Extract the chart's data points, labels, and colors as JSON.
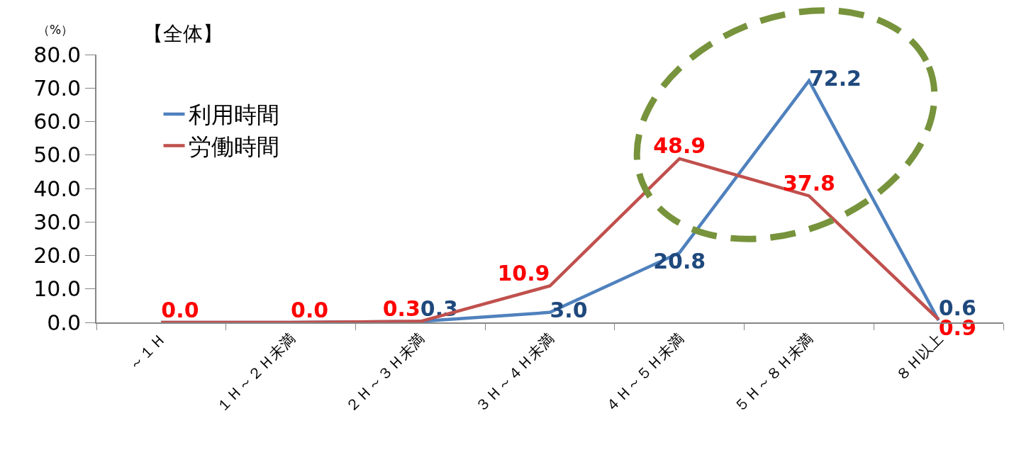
{
  "chart_data": {
    "type": "line",
    "title": "【全体】",
    "annotations": [
      "（%）"
    ],
    "categories": [
      "～１Ｈ",
      "１Ｈ～２Ｈ未満",
      "２Ｈ～３Ｈ未満",
      "３Ｈ～４Ｈ未満",
      "４Ｈ～５Ｈ未満",
      "５Ｈ～８Ｈ未満",
      "８Ｈ以上"
    ],
    "series": [
      {
        "name": "利用時間",
        "color": "#4f81bd",
        "values": [
          0.0,
          0.0,
          0.3,
          3.0,
          20.8,
          72.2,
          0.6
        ],
        "value_labels": [
          null,
          null,
          "0.3",
          "3.0",
          "20.8",
          "72.2",
          "0.6"
        ]
      },
      {
        "name": "労働時間",
        "color": "#c0504d",
        "values": [
          0.0,
          0.0,
          0.3,
          10.9,
          48.9,
          37.8,
          0.9
        ],
        "value_labels": [
          "0.0",
          "0.0",
          "0.3",
          "10.9",
          "48.9",
          "37.8",
          "0.9"
        ]
      }
    ],
    "ylim": [
      0,
      80
    ],
    "yticks": [
      {
        "value": 0,
        "label": "0.0"
      },
      {
        "value": 10,
        "label": "10.0"
      },
      {
        "value": 20,
        "label": "20.0"
      },
      {
        "value": 30,
        "label": "30.0"
      },
      {
        "value": 40,
        "label": "40.0"
      },
      {
        "value": 50,
        "label": "50.0"
      },
      {
        "value": 60,
        "label": "60.0"
      },
      {
        "value": 70,
        "label": "70.0"
      },
      {
        "value": 80,
        "label": "80.0"
      }
    ],
    "grid": false,
    "legend": "top left",
    "marker": "none",
    "line_style": "solid"
  }
}
